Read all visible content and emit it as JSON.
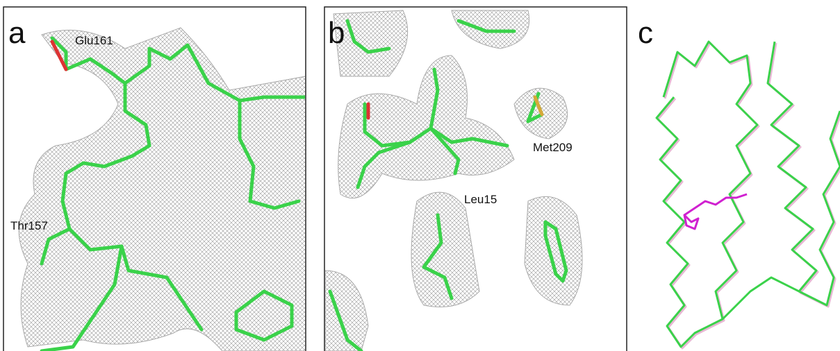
{
  "panels": [
    {
      "letter": "a",
      "labels": [
        "Glu161",
        "Thr157"
      ]
    },
    {
      "letter": "b",
      "labels": [
        "Met209",
        "Leu15"
      ]
    },
    {
      "letter": "c",
      "labels": []
    }
  ]
}
